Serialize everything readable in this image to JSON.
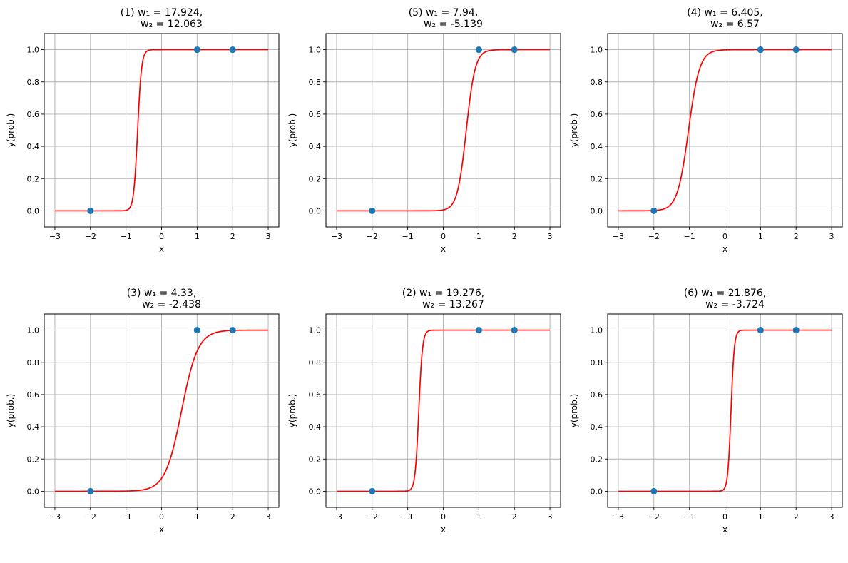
{
  "chart_data": [
    {
      "type": "line",
      "title_line1": "(1) w₁ = 17.924,",
      "title_line2": "w₂ = 12.063",
      "w1": 17.924,
      "w2": 12.063,
      "xlabel": "x",
      "ylabel": "y(prob.)",
      "xlim": [
        -3.3,
        3.3
      ],
      "ylim": [
        -0.1,
        1.1
      ],
      "xticks": [
        -3,
        -2,
        -1,
        0,
        1,
        2,
        3
      ],
      "xtick_labels": [
        "−3",
        "−2",
        "−1",
        "0",
        "1",
        "2",
        "3"
      ],
      "yticks": [
        0,
        0.2,
        0.4,
        0.6,
        0.8,
        1.0
      ],
      "ytick_labels": [
        "0.0",
        "0.2",
        "0.4",
        "0.6",
        "0.8",
        "1.0"
      ],
      "grid": true,
      "series": [
        {
          "kind": "line",
          "x_range": [
            -3,
            3
          ],
          "function": "sigmoid(w1*x + w2)",
          "color": "#ff0000"
        },
        {
          "kind": "scatter",
          "x": [
            -2,
            1,
            2
          ],
          "y": [
            0,
            1,
            1
          ],
          "color": "#1f77b4"
        }
      ]
    },
    {
      "type": "line",
      "title_line1": "(3) w₁ = 4.33,",
      "title_line2": "w₂ = -2.438",
      "w1": 4.33,
      "w2": -2.438,
      "xlabel": "x",
      "ylabel": "y(prob.)",
      "xlim": [
        -3.3,
        3.3
      ],
      "ylim": [
        -0.1,
        1.1
      ],
      "xticks": [
        -3,
        -2,
        -1,
        0,
        1,
        2,
        3
      ],
      "xtick_labels": [
        "−3",
        "−2",
        "−1",
        "0",
        "1",
        "2",
        "3"
      ],
      "yticks": [
        0,
        0.2,
        0.4,
        0.6,
        0.8,
        1.0
      ],
      "ytick_labels": [
        "0.0",
        "0.2",
        "0.4",
        "0.6",
        "0.8",
        "1.0"
      ],
      "grid": true,
      "series": [
        {
          "kind": "line",
          "x_range": [
            -3,
            3
          ],
          "function": "sigmoid(w1*x + w2)",
          "color": "#ff0000"
        },
        {
          "kind": "scatter",
          "x": [
            -2,
            1,
            2
          ],
          "y": [
            0,
            1,
            1
          ],
          "color": "#1f77b4"
        }
      ]
    },
    {
      "type": "line",
      "title_line1": "(5) w₁ = 7.94,",
      "title_line2": "w₂ = -5.139",
      "w1": 7.94,
      "w2": -5.139,
      "xlabel": "x",
      "ylabel": "y(prob.)",
      "xlim": [
        -3.3,
        3.3
      ],
      "ylim": [
        -0.1,
        1.1
      ],
      "xticks": [
        -3,
        -2,
        -1,
        0,
        1,
        2,
        3
      ],
      "xtick_labels": [
        "−3",
        "−2",
        "−1",
        "0",
        "1",
        "2",
        "3"
      ],
      "yticks": [
        0,
        0.2,
        0.4,
        0.6,
        0.8,
        1.0
      ],
      "ytick_labels": [
        "0.0",
        "0.2",
        "0.4",
        "0.6",
        "0.8",
        "1.0"
      ],
      "grid": true,
      "series": [
        {
          "kind": "line",
          "x_range": [
            -3,
            3
          ],
          "function": "sigmoid(w1*x + w2)",
          "color": "#ff0000"
        },
        {
          "kind": "scatter",
          "x": [
            -2,
            1,
            2
          ],
          "y": [
            0,
            1,
            1
          ],
          "color": "#1f77b4"
        }
      ]
    },
    {
      "type": "line",
      "title_line1": "(2) w₁ = 19.276,",
      "title_line2": "w₂ = 13.267",
      "w1": 19.276,
      "w2": 13.267,
      "xlabel": "x",
      "ylabel": "y(prob.)",
      "xlim": [
        -3.3,
        3.3
      ],
      "ylim": [
        -0.1,
        1.1
      ],
      "xticks": [
        -3,
        -2,
        -1,
        0,
        1,
        2,
        3
      ],
      "xtick_labels": [
        "−3",
        "−2",
        "−1",
        "0",
        "1",
        "2",
        "3"
      ],
      "yticks": [
        0,
        0.2,
        0.4,
        0.6,
        0.8,
        1.0
      ],
      "ytick_labels": [
        "0.0",
        "0.2",
        "0.4",
        "0.6",
        "0.8",
        "1.0"
      ],
      "grid": true,
      "series": [
        {
          "kind": "line",
          "x_range": [
            -3,
            3
          ],
          "function": "sigmoid(w1*x + w2)",
          "color": "#ff0000"
        },
        {
          "kind": "scatter",
          "x": [
            -2,
            1,
            2
          ],
          "y": [
            0,
            1,
            1
          ],
          "color": "#1f77b4"
        }
      ]
    },
    {
      "type": "line",
      "title_line1": "(4) w₁ = 6.405,",
      "title_line2": "w₂ = 6.57",
      "w1": 6.405,
      "w2": 6.57,
      "xlabel": "x",
      "ylabel": "y(prob.)",
      "xlim": [
        -3.3,
        3.3
      ],
      "ylim": [
        -0.1,
        1.1
      ],
      "xticks": [
        -3,
        -2,
        -1,
        0,
        1,
        2,
        3
      ],
      "xtick_labels": [
        "−3",
        "−2",
        "−1",
        "0",
        "1",
        "2",
        "3"
      ],
      "yticks": [
        0,
        0.2,
        0.4,
        0.6,
        0.8,
        1.0
      ],
      "ytick_labels": [
        "0.0",
        "0.2",
        "0.4",
        "0.6",
        "0.8",
        "1.0"
      ],
      "grid": true,
      "series": [
        {
          "kind": "line",
          "x_range": [
            -3,
            3
          ],
          "function": "sigmoid(w1*x + w2)",
          "color": "#ff0000"
        },
        {
          "kind": "scatter",
          "x": [
            -2,
            1,
            2
          ],
          "y": [
            0,
            1,
            1
          ],
          "color": "#1f77b4"
        }
      ]
    },
    {
      "type": "line",
      "title_line1": "(6) w₁ = 21.876,",
      "title_line2": "w₂ = -3.724",
      "w1": 21.876,
      "w2": -3.724,
      "xlabel": "x",
      "ylabel": "y(prob.)",
      "xlim": [
        -3.3,
        3.3
      ],
      "ylim": [
        -0.1,
        1.1
      ],
      "xticks": [
        -3,
        -2,
        -1,
        0,
        1,
        2,
        3
      ],
      "xtick_labels": [
        "−3",
        "−2",
        "−1",
        "0",
        "1",
        "2",
        "3"
      ],
      "yticks": [
        0,
        0.2,
        0.4,
        0.6,
        0.8,
        1.0
      ],
      "ytick_labels": [
        "0.0",
        "0.2",
        "0.4",
        "0.6",
        "0.8",
        "1.0"
      ],
      "grid": true,
      "series": [
        {
          "kind": "line",
          "x_range": [
            -3,
            3
          ],
          "function": "sigmoid(w1*x + w2)",
          "color": "#ff0000"
        },
        {
          "kind": "scatter",
          "x": [
            -2,
            1,
            2
          ],
          "y": [
            0,
            1,
            1
          ],
          "color": "#1f77b4"
        }
      ]
    }
  ]
}
